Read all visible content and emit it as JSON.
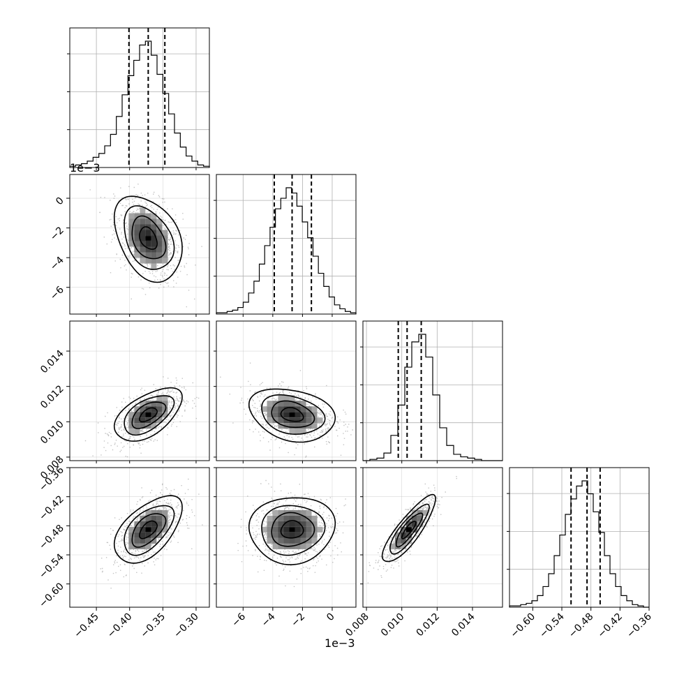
{
  "chart_data": {
    "type": "corner",
    "n_params": 4,
    "grid": true,
    "colors": {
      "line": "#000000",
      "grid": "#b0b0b0",
      "scatter": "#7a7a7a",
      "panel_bg": "#ffffff"
    },
    "params": [
      {
        "range": [
          -0.49,
          -0.28
        ],
        "ticks": [
          -0.45,
          -0.4,
          -0.35,
          -0.3
        ],
        "tick_labels": [
          "−0.45",
          "−0.40",
          "−0.35",
          "−0.30"
        ],
        "offset_label": "",
        "quantiles": [
          -0.401,
          -0.372,
          -0.347
        ],
        "center": -0.372,
        "spread": 0.022
      },
      {
        "range": [
          -0.0078,
          0.0016
        ],
        "ticks": [
          -0.006,
          -0.004,
          -0.002,
          0.0
        ],
        "tick_labels": [
          "−6",
          "−4",
          "−2",
          "0"
        ],
        "offset_label": "1e−3",
        "quantiles": [
          -0.0039,
          -0.0027,
          -0.0014
        ],
        "center": -0.0027,
        "spread": 0.00125
      },
      {
        "range": [
          0.0078,
          0.0157
        ],
        "ticks": [
          0.008,
          0.01,
          0.012,
          0.014
        ],
        "tick_labels": [
          "0.008",
          "0.010",
          "0.012",
          "0.014"
        ],
        "offset_label": "",
        "quantiles": [
          0.0098,
          0.0103,
          0.0111
        ],
        "center": 0.0104,
        "spread": 0.00065
      },
      {
        "range": [
          -0.648,
          -0.36
        ],
        "ticks": [
          -0.6,
          -0.54,
          -0.48,
          -0.42,
          -0.36
        ],
        "tick_labels": [
          "−0.60",
          "−0.54",
          "−0.48",
          "−0.42",
          "−0.36"
        ],
        "offset_label": "",
        "quantiles": [
          -0.521,
          -0.488,
          -0.461
        ],
        "center": -0.488,
        "spread": 0.03
      }
    ],
    "histograms": [
      {
        "param": 0,
        "counts": [
          1,
          2,
          3,
          5,
          8,
          11,
          17,
          26,
          40,
          57,
          72,
          84,
          96,
          99,
          88,
          73,
          58,
          42,
          27,
          16,
          9,
          5,
          2,
          1
        ]
      },
      {
        "param": 1,
        "counts": [
          1,
          1,
          2,
          3,
          5,
          9,
          16,
          25,
          38,
          52,
          66,
          80,
          88,
          96,
          92,
          82,
          70,
          58,
          44,
          31,
          21,
          13,
          7,
          4,
          2,
          1
        ]
      },
      {
        "param": 2,
        "counts": [
          0,
          1,
          2,
          6,
          20,
          44,
          74,
          94,
          100,
          82,
          52,
          26,
          12,
          5,
          3,
          2,
          1,
          0,
          0,
          0
        ]
      },
      {
        "param": 3,
        "counts": [
          1,
          1,
          2,
          3,
          5,
          9,
          16,
          26,
          40,
          56,
          72,
          84,
          94,
          98,
          88,
          74,
          58,
          40,
          26,
          16,
          9,
          5,
          2,
          1,
          0
        ]
      }
    ],
    "pairs": [
      {
        "x": 1,
        "y": 0,
        "corr": -0.35
      },
      {
        "x": 2,
        "y": 0,
        "corr": 0.55
      },
      {
        "x": 2,
        "y": 1,
        "corr": -0.25
      },
      {
        "x": 3,
        "y": 0,
        "corr": 0.55
      },
      {
        "x": 3,
        "y": 1,
        "corr": 0.05
      },
      {
        "x": 3,
        "y": 2,
        "corr": 0.85
      }
    ],
    "offset_labels": {
      "row1": "1e−3",
      "bottom": "1e−3"
    }
  }
}
